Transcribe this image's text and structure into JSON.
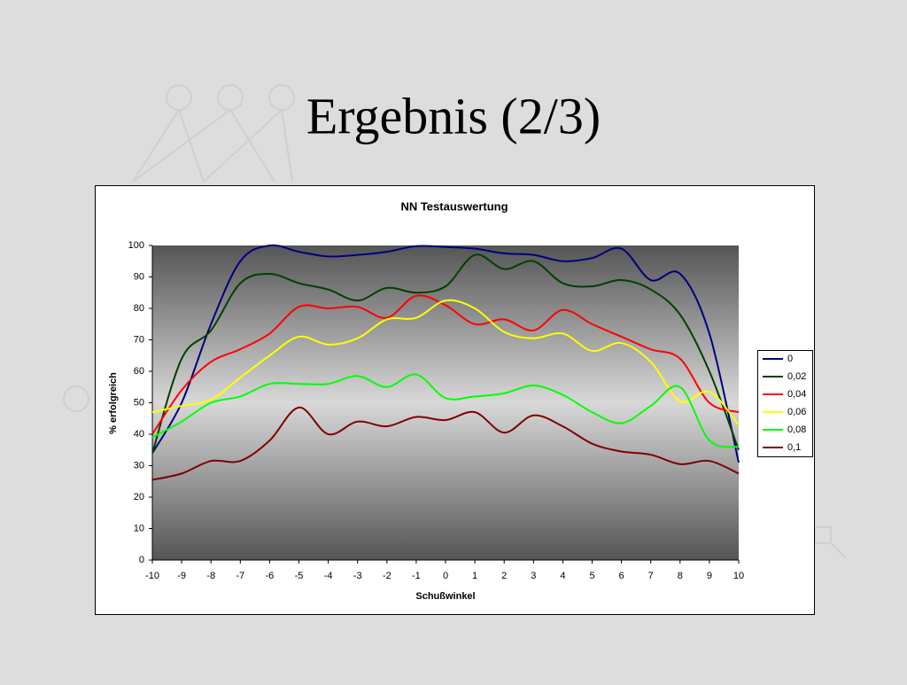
{
  "title": "Ergebnis (2/3)",
  "chart_data": {
    "type": "line",
    "title": "NN Testauswertung",
    "x_label": "Schußwinkel",
    "y_label": "% erfolgreich",
    "x": [
      -10,
      -9,
      -8,
      -7,
      -6,
      -5,
      -4,
      -3,
      -2,
      -1,
      0,
      1,
      2,
      3,
      4,
      5,
      6,
      7,
      8,
      9,
      10
    ],
    "xlim": [
      -10,
      10
    ],
    "xticks": [
      -10,
      -9,
      -8,
      -7,
      -6,
      -5,
      -4,
      -3,
      -2,
      -1,
      0,
      1,
      2,
      3,
      4,
      5,
      6,
      7,
      8,
      9,
      10
    ],
    "ylim": [
      0,
      100
    ],
    "yticks": [
      0,
      10,
      20,
      30,
      40,
      50,
      60,
      70,
      80,
      90,
      100
    ],
    "legend": "right",
    "series": [
      {
        "name": "0",
        "color": "#000080",
        "values": [
          34,
          50,
          75,
          95,
          100,
          98,
          96.5,
          97,
          98,
          99.8,
          99.5,
          99,
          97.5,
          97,
          95,
          96,
          99,
          89,
          91,
          72,
          31
        ]
      },
      {
        "name": "0,02",
        "color": "#004000",
        "values": [
          34,
          64,
          73,
          88,
          91,
          88,
          86,
          82.5,
          86.5,
          85,
          87,
          97,
          92.5,
          95,
          88,
          87,
          89,
          86,
          78,
          60,
          35
        ]
      },
      {
        "name": "0,04",
        "color": "#ff0000",
        "values": [
          40,
          54,
          63,
          67,
          72,
          80.5,
          80,
          80.5,
          77,
          84,
          81,
          75,
          76.5,
          73,
          79.5,
          75,
          71,
          67,
          64,
          50,
          47
        ]
      },
      {
        "name": "0,06",
        "color": "#ffff00",
        "values": [
          47,
          49,
          51,
          58,
          65,
          71,
          68.5,
          70.5,
          76.5,
          77,
          82.5,
          80,
          72.5,
          70.5,
          72,
          66.5,
          69,
          63,
          50.5,
          53.5,
          43
        ]
      },
      {
        "name": "0,08",
        "color": "#00ff00",
        "values": [
          39,
          44,
          50,
          52,
          56,
          56,
          56,
          58.5,
          55,
          59,
          51.5,
          52,
          53,
          55.5,
          52.5,
          47,
          43.5,
          49,
          55,
          38,
          36
        ]
      },
      {
        "name": "0,1",
        "color": "#800000",
        "values": [
          25.5,
          27.5,
          31.5,
          31.5,
          38,
          48.5,
          40,
          44,
          42.5,
          45.5,
          44.5,
          47,
          40.5,
          46,
          42.5,
          37,
          34.5,
          33.5,
          30.5,
          31.5,
          27.5
        ]
      }
    ]
  }
}
